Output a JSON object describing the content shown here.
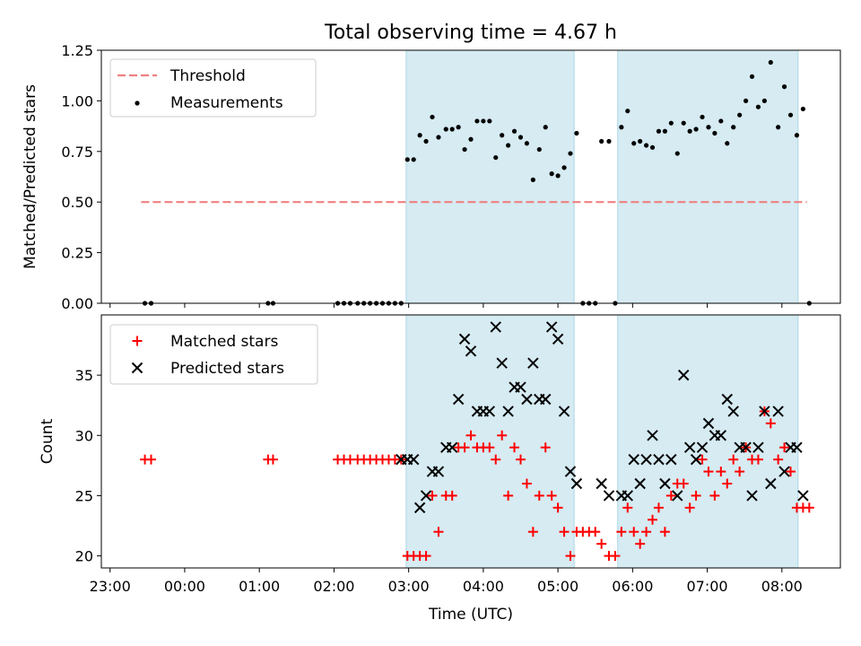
{
  "figure": {
    "title": "Total observing time = 4.67 h"
  },
  "colors": {
    "threshold": "#f08080",
    "measurement": "#000000",
    "matched": "#ff0000",
    "predicted": "#000000",
    "span_fill": "#add8e6"
  },
  "chart_data": [
    {
      "type": "scatter",
      "ylabel": "Matched/Predicted stars",
      "xlabel": "",
      "xlim": [
        "22:53",
        "08:47"
      ],
      "ylim": [
        0,
        1.25
      ],
      "yticks": [
        "0.00",
        "0.25",
        "0.50",
        "0.75",
        "1.00",
        "1.25"
      ],
      "xticks": [
        "23:00",
        "00:00",
        "01:00",
        "02:00",
        "03:00",
        "04:00",
        "05:00",
        "06:00",
        "07:00",
        "08:00"
      ],
      "grid": false,
      "legend": "upper-left",
      "shaded_spans": [
        [
          "02:58",
          "05:13"
        ],
        [
          "05:48",
          "08:13"
        ]
      ],
      "threshold": {
        "name": "Threshold",
        "y": 0.5,
        "x_range": [
          "23:25",
          "08:20"
        ]
      },
      "series": [
        {
          "name": "Measurements",
          "points": [
            [
              "23:28",
              0
            ],
            [
              "23:33",
              0
            ],
            [
              "01:07",
              0
            ],
            [
              "01:11",
              0
            ],
            [
              "02:03",
              0
            ],
            [
              "02:08",
              0
            ],
            [
              "02:13",
              0
            ],
            [
              "02:19",
              0
            ],
            [
              "02:24",
              0
            ],
            [
              "02:29",
              0
            ],
            [
              "02:34",
              0
            ],
            [
              "02:39",
              0
            ],
            [
              "02:44",
              0
            ],
            [
              "02:49",
              0
            ],
            [
              "02:54",
              0
            ],
            [
              "02:59",
              0.71
            ],
            [
              "03:04",
              0.71
            ],
            [
              "03:09",
              0.83
            ],
            [
              "03:14",
              0.8
            ],
            [
              "03:19",
              0.92
            ],
            [
              "03:24",
              0.82
            ],
            [
              "03:30",
              0.86
            ],
            [
              "03:35",
              0.86
            ],
            [
              "03:40",
              0.87
            ],
            [
              "03:45",
              0.76
            ],
            [
              "03:50",
              0.81
            ],
            [
              "03:55",
              0.9
            ],
            [
              "04:00",
              0.9
            ],
            [
              "04:05",
              0.9
            ],
            [
              "04:10",
              0.72
            ],
            [
              "04:15",
              0.83
            ],
            [
              "04:20",
              0.78
            ],
            [
              "04:25",
              0.85
            ],
            [
              "04:30",
              0.82
            ],
            [
              "04:35",
              0.79
            ],
            [
              "04:40",
              0.61
            ],
            [
              "04:45",
              0.76
            ],
            [
              "04:50",
              0.87
            ],
            [
              "04:55",
              0.64
            ],
            [
              "05:00",
              0.63
            ],
            [
              "05:05",
              0.67
            ],
            [
              "05:10",
              0.74
            ],
            [
              "05:15",
              0.84
            ],
            [
              "05:20",
              0
            ],
            [
              "05:25",
              0
            ],
            [
              "05:30",
              0
            ],
            [
              "05:35",
              0.8
            ],
            [
              "05:41",
              0.8
            ],
            [
              "05:46",
              0
            ],
            [
              "05:51",
              0.87
            ],
            [
              "05:56",
              0.95
            ],
            [
              "06:01",
              0.79
            ],
            [
              "06:06",
              0.8
            ],
            [
              "06:11",
              0.78
            ],
            [
              "06:16",
              0.77
            ],
            [
              "06:21",
              0.85
            ],
            [
              "06:26",
              0.85
            ],
            [
              "06:31",
              0.89
            ],
            [
              "06:36",
              0.74
            ],
            [
              "06:41",
              0.89
            ],
            [
              "06:46",
              0.85
            ],
            [
              "06:51",
              0.86
            ],
            [
              "06:56",
              0.92
            ],
            [
              "07:01",
              0.87
            ],
            [
              "07:06",
              0.84
            ],
            [
              "07:11",
              0.9
            ],
            [
              "07:16",
              0.79
            ],
            [
              "07:21",
              0.87
            ],
            [
              "07:26",
              0.93
            ],
            [
              "07:31",
              1.0
            ],
            [
              "07:36",
              1.12
            ],
            [
              "07:41",
              0.97
            ],
            [
              "07:46",
              1.0
            ],
            [
              "07:51",
              1.19
            ],
            [
              "07:57",
              0.87
            ],
            [
              "08:02",
              1.07
            ],
            [
              "08:07",
              0.93
            ],
            [
              "08:12",
              0.83
            ],
            [
              "08:17",
              0.96
            ],
            [
              "08:22",
              0
            ]
          ]
        }
      ]
    },
    {
      "type": "scatter",
      "ylabel": "Count",
      "xlabel": "Time (UTC)",
      "xlim": [
        "22:53",
        "08:47"
      ],
      "ylim": [
        19,
        40
      ],
      "yticks": [
        "20",
        "25",
        "30",
        "35"
      ],
      "xticks": [
        "23:00",
        "00:00",
        "01:00",
        "02:00",
        "03:00",
        "04:00",
        "05:00",
        "06:00",
        "07:00",
        "08:00"
      ],
      "grid": false,
      "legend": "upper-left",
      "shaded_spans": [
        [
          "02:58",
          "05:13"
        ],
        [
          "05:48",
          "08:13"
        ]
      ],
      "series": [
        {
          "name": "Matched stars",
          "marker": "+",
          "points": [
            [
              "23:28",
              28
            ],
            [
              "23:33",
              28
            ],
            [
              "01:07",
              28
            ],
            [
              "01:11",
              28
            ],
            [
              "02:03",
              28
            ],
            [
              "02:08",
              28
            ],
            [
              "02:13",
              28
            ],
            [
              "02:19",
              28
            ],
            [
              "02:24",
              28
            ],
            [
              "02:29",
              28
            ],
            [
              "02:34",
              28
            ],
            [
              "02:39",
              28
            ],
            [
              "02:44",
              28
            ],
            [
              "02:49",
              28
            ],
            [
              "02:54",
              28
            ],
            [
              "02:59",
              20
            ],
            [
              "03:04",
              20
            ],
            [
              "03:09",
              20
            ],
            [
              "03:14",
              20
            ],
            [
              "03:19",
              25
            ],
            [
              "03:24",
              22
            ],
            [
              "03:30",
              25
            ],
            [
              "03:35",
              25
            ],
            [
              "03:40",
              29
            ],
            [
              "03:45",
              29
            ],
            [
              "03:50",
              30
            ],
            [
              "03:55",
              29
            ],
            [
              "04:00",
              29
            ],
            [
              "04:05",
              29
            ],
            [
              "04:10",
              28
            ],
            [
              "04:15",
              30
            ],
            [
              "04:20",
              25
            ],
            [
              "04:25",
              29
            ],
            [
              "04:30",
              28
            ],
            [
              "04:35",
              26
            ],
            [
              "04:40",
              22
            ],
            [
              "04:45",
              25
            ],
            [
              "04:50",
              29
            ],
            [
              "04:55",
              25
            ],
            [
              "05:00",
              24
            ],
            [
              "05:05",
              22
            ],
            [
              "05:10",
              20
            ],
            [
              "05:15",
              22
            ],
            [
              "05:20",
              22
            ],
            [
              "05:25",
              22
            ],
            [
              "05:30",
              22
            ],
            [
              "05:35",
              21
            ],
            [
              "05:41",
              20
            ],
            [
              "05:46",
              20
            ],
            [
              "05:51",
              22
            ],
            [
              "05:56",
              24
            ],
            [
              "06:01",
              22
            ],
            [
              "06:06",
              21
            ],
            [
              "06:11",
              22
            ],
            [
              "06:16",
              23
            ],
            [
              "06:21",
              24
            ],
            [
              "06:26",
              22
            ],
            [
              "06:31",
              25
            ],
            [
              "06:36",
              26
            ],
            [
              "06:41",
              26
            ],
            [
              "06:46",
              24
            ],
            [
              "06:51",
              25
            ],
            [
              "06:56",
              28
            ],
            [
              "07:01",
              27
            ],
            [
              "07:06",
              25
            ],
            [
              "07:11",
              27
            ],
            [
              "07:16",
              26
            ],
            [
              "07:21",
              28
            ],
            [
              "07:26",
              27
            ],
            [
              "07:31",
              29
            ],
            [
              "07:36",
              28
            ],
            [
              "07:41",
              28
            ],
            [
              "07:46",
              32
            ],
            [
              "07:51",
              31
            ],
            [
              "07:57",
              28
            ],
            [
              "08:02",
              29
            ],
            [
              "08:07",
              27
            ],
            [
              "08:12",
              24
            ],
            [
              "08:17",
              24
            ],
            [
              "08:22",
              24
            ]
          ]
        },
        {
          "name": "Predicted stars",
          "marker": "x",
          "points": [
            [
              "02:54",
              28
            ],
            [
              "02:59",
              28
            ],
            [
              "03:04",
              28
            ],
            [
              "03:09",
              24
            ],
            [
              "03:14",
              25
            ],
            [
              "03:19",
              27
            ],
            [
              "03:24",
              27
            ],
            [
              "03:30",
              29
            ],
            [
              "03:35",
              29
            ],
            [
              "03:40",
              33
            ],
            [
              "03:45",
              38
            ],
            [
              "03:50",
              37
            ],
            [
              "03:55",
              32
            ],
            [
              "04:00",
              32
            ],
            [
              "04:05",
              32
            ],
            [
              "04:10",
              39
            ],
            [
              "04:15",
              36
            ],
            [
              "04:20",
              32
            ],
            [
              "04:25",
              34
            ],
            [
              "04:30",
              34
            ],
            [
              "04:35",
              33
            ],
            [
              "04:40",
              36
            ],
            [
              "04:45",
              33
            ],
            [
              "04:50",
              33
            ],
            [
              "04:55",
              39
            ],
            [
              "05:00",
              38
            ],
            [
              "05:05",
              32
            ],
            [
              "05:10",
              27
            ],
            [
              "05:15",
              26
            ],
            [
              "05:35",
              26
            ],
            [
              "05:41",
              25
            ],
            [
              "05:51",
              25
            ],
            [
              "05:56",
              25
            ],
            [
              "06:01",
              28
            ],
            [
              "06:06",
              26
            ],
            [
              "06:11",
              28
            ],
            [
              "06:16",
              30
            ],
            [
              "06:21",
              28
            ],
            [
              "06:26",
              26
            ],
            [
              "06:31",
              28
            ],
            [
              "06:36",
              25
            ],
            [
              "06:41",
              35
            ],
            [
              "06:46",
              29
            ],
            [
              "06:51",
              28
            ],
            [
              "06:56",
              29
            ],
            [
              "07:01",
              31
            ],
            [
              "07:06",
              30
            ],
            [
              "07:11",
              30
            ],
            [
              "07:16",
              33
            ],
            [
              "07:21",
              32
            ],
            [
              "07:26",
              29
            ],
            [
              "07:31",
              29
            ],
            [
              "07:36",
              25
            ],
            [
              "07:41",
              29
            ],
            [
              "07:46",
              32
            ],
            [
              "07:51",
              26
            ],
            [
              "07:57",
              32
            ],
            [
              "08:02",
              27
            ],
            [
              "08:07",
              29
            ],
            [
              "08:12",
              29
            ],
            [
              "08:17",
              25
            ]
          ]
        }
      ]
    }
  ]
}
